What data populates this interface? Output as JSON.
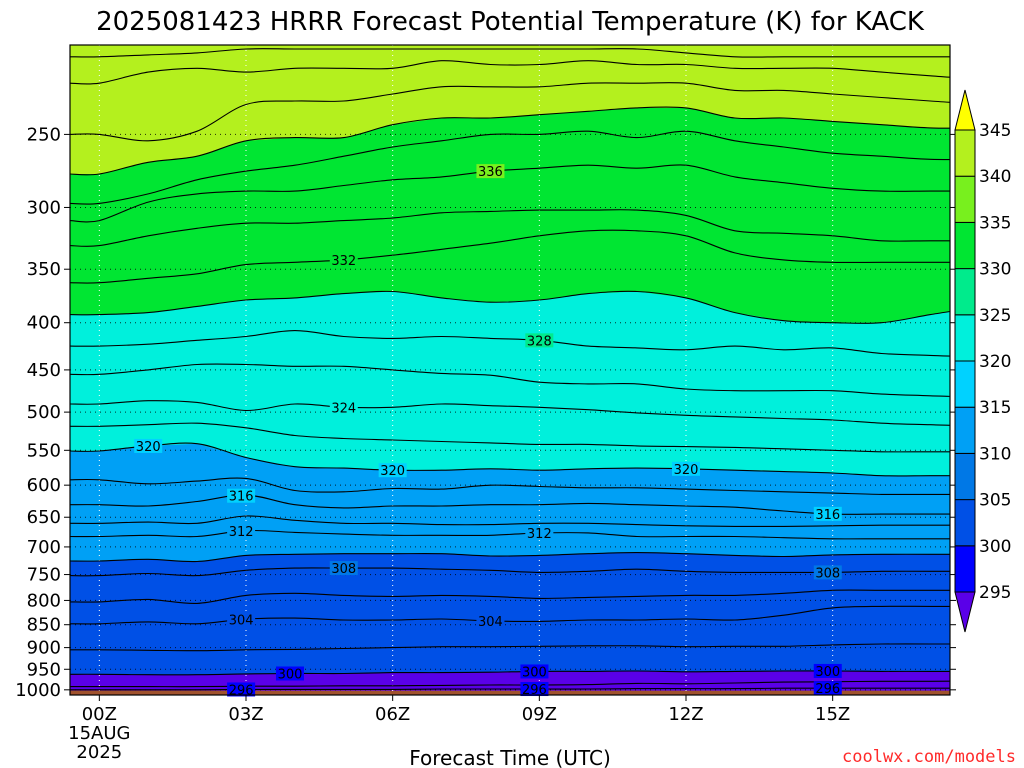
{
  "chart_data": {
    "type": "heatmap",
    "title": "2025081423 HRRR Forecast Potential Temperature (K) for KACK",
    "xlabel": "Forecast Time (UTC)",
    "x_ticks": [
      {
        "hour": 0,
        "lines": [
          "00Z",
          "15AUG",
          "2025"
        ]
      },
      {
        "hour": 3,
        "lines": [
          "03Z"
        ]
      },
      {
        "hour": 6,
        "lines": [
          "06Z"
        ]
      },
      {
        "hour": 9,
        "lines": [
          "09Z"
        ]
      },
      {
        "hour": 12,
        "lines": [
          "12Z"
        ]
      },
      {
        "hour": 15,
        "lines": [
          "15Z"
        ]
      }
    ],
    "xlim": [
      -0.6,
      17.4
    ],
    "y_ticks": [
      250,
      300,
      350,
      400,
      450,
      500,
      550,
      600,
      650,
      700,
      750,
      800,
      850,
      900,
      950,
      1000
    ],
    "y_scale": "log",
    "ylim": [
      1013,
      200
    ],
    "colorbar": {
      "levels": [
        295,
        300,
        305,
        310,
        315,
        320,
        325,
        330,
        335,
        340,
        345
      ],
      "colors": [
        "#5a00e8",
        "#0000ff",
        "#0050e6",
        "#0078e6",
        "#00a0f5",
        "#00d2ff",
        "#00f0dc",
        "#00eb8c",
        "#00e632",
        "#78f01e",
        "#b4f01e",
        "#ffff00"
      ],
      "extend": "both"
    },
    "contour_interval": 2,
    "contours": [
      {
        "theta": 296,
        "pressure": [
          1000,
          1000,
          1000,
          999,
          999,
          999,
          999,
          998,
          998,
          998,
          998,
          997,
          997,
          997,
          996,
          996,
          996,
          996,
          996
        ]
      },
      {
        "theta": 298,
        "pressure": [
          992,
          992,
          992,
          991,
          991,
          990,
          990,
          989,
          988,
          988,
          987,
          984,
          985,
          983,
          981,
          980,
          979,
          979,
          978
        ]
      },
      {
        "theta": 300,
        "pressure": [
          962,
          963,
          963,
          961,
          960,
          960,
          958,
          958,
          957,
          955,
          955,
          954,
          956,
          955,
          954,
          954,
          955,
          955,
          956
        ]
      },
      {
        "theta": 302,
        "pressure": [
          905,
          906,
          907,
          905,
          904,
          902,
          900,
          898,
          898,
          897,
          896,
          896,
          898,
          897,
          897,
          894,
          892,
          892,
          892
        ]
      },
      {
        "theta": 304,
        "pressure": [
          848,
          844,
          848,
          838,
          836,
          840,
          840,
          838,
          842,
          843,
          840,
          840,
          838,
          840,
          830,
          815,
          812,
          812,
          812
        ]
      },
      {
        "theta": 306,
        "pressure": [
          803,
          798,
          806,
          790,
          786,
          790,
          792,
          790,
          792,
          796,
          794,
          792,
          790,
          790,
          786,
          780,
          780,
          780,
          780
        ]
      },
      {
        "theta": 308,
        "pressure": [
          752,
          748,
          752,
          742,
          738,
          738,
          738,
          740,
          742,
          746,
          744,
          740,
          744,
          746,
          746,
          746,
          744,
          744,
          744
        ]
      },
      {
        "theta": 310,
        "pressure": [
          725,
          722,
          726,
          715,
          713,
          712,
          712,
          712,
          716,
          715,
          712,
          710,
          712,
          715,
          717,
          714,
          713,
          713,
          713
        ]
      },
      {
        "theta": 312,
        "pressure": [
          682,
          680,
          682,
          672,
          675,
          678,
          680,
          680,
          680,
          676,
          676,
          682,
          682,
          682,
          684,
          686,
          686,
          686,
          686
        ]
      },
      {
        "theta": 314,
        "pressure": [
          660,
          658,
          660,
          648,
          655,
          660,
          660,
          662,
          662,
          660,
          660,
          662,
          664,
          665,
          665,
          664,
          663,
          663,
          663
        ]
      },
      {
        "theta": 316,
        "pressure": [
          630,
          632,
          625,
          615,
          630,
          635,
          632,
          632,
          630,
          630,
          628,
          630,
          632,
          634,
          640,
          645,
          645,
          645,
          645
        ]
      },
      {
        "theta": 318,
        "pressure": [
          592,
          598,
          594,
          590,
          608,
          610,
          605,
          606,
          600,
          602,
          604,
          604,
          606,
          608,
          610,
          612,
          614,
          614,
          614
        ]
      },
      {
        "theta": 320,
        "pressure": [
          551,
          544,
          541,
          560,
          573,
          575,
          578,
          578,
          576,
          578,
          576,
          575,
          576,
          578,
          580,
          582,
          586,
          586,
          586
        ]
      },
      {
        "theta": 322,
        "pressure": [
          518,
          516,
          514,
          520,
          530,
          534,
          536,
          538,
          540,
          542,
          542,
          544,
          545,
          546,
          548,
          550,
          552,
          552,
          552
        ]
      },
      {
        "theta": 324,
        "pressure": [
          490,
          486,
          488,
          498,
          490,
          494,
          494,
          490,
          492,
          494,
          497,
          501,
          504,
          506,
          508,
          510,
          514,
          516,
          518
        ]
      },
      {
        "theta": 326,
        "pressure": [
          455,
          450,
          444,
          444,
          446,
          446,
          450,
          454,
          456,
          464,
          466,
          466,
          472,
          474,
          474,
          474,
          478,
          480,
          482
        ]
      },
      {
        "theta": 328,
        "pressure": [
          424,
          422,
          418,
          414,
          408,
          414,
          416,
          414,
          416,
          418,
          424,
          426,
          428,
          424,
          428,
          426,
          432,
          434,
          436
        ]
      },
      {
        "theta": 330,
        "pressure": [
          392,
          390,
          384,
          378,
          376,
          372,
          370,
          376,
          380,
          378,
          372,
          370,
          376,
          390,
          398,
          400,
          400,
          392,
          384
        ]
      },
      {
        "theta": 332,
        "pressure": [
          362,
          358,
          354,
          346,
          344,
          342,
          338,
          333,
          328,
          322,
          318,
          318,
          322,
          336,
          342,
          344,
          344,
          344,
          344
        ]
      },
      {
        "theta": 334,
        "pressure": [
          330,
          322,
          316,
          312,
          312,
          310,
          308,
          304,
          303,
          302,
          302,
          302,
          306,
          318,
          320,
          322,
          326,
          326,
          326
        ]
      },
      {
        "theta": 336,
        "pressure": [
          310,
          296,
          290,
          288,
          288,
          284,
          280,
          278,
          274,
          272,
          270,
          272,
          270,
          278,
          282,
          286,
          288,
          288,
          288
        ]
      },
      {
        "theta": 338,
        "pressure": [
          297,
          290,
          280,
          274,
          270,
          264,
          258,
          254,
          250,
          250,
          248,
          252,
          248,
          254,
          258,
          262,
          264,
          266,
          266
        ]
      },
      {
        "theta": 340,
        "pressure": [
          276,
          268,
          264,
          254,
          252,
          252,
          244,
          240,
          240,
          238,
          236,
          234,
          234,
          240,
          240,
          242,
          244,
          246,
          246
        ]
      },
      {
        "theta": 342,
        "pressure": [
          250,
          254,
          248,
          232,
          230,
          230,
          226,
          222,
          222,
          222,
          220,
          220,
          220,
          224,
          224,
          226,
          228,
          230,
          232
        ]
      },
      {
        "theta": 344,
        "pressure": [
          220,
          214,
          212,
          214,
          212,
          212,
          212,
          208,
          210,
          210,
          208,
          210,
          210,
          212,
          212,
          212,
          214,
          216,
          218
        ]
      },
      {
        "theta": 346,
        "pressure": [
          206,
          205,
          204,
          202,
          202,
          202,
          202,
          202,
          202,
          202,
          202,
          202,
          204,
          206,
          206,
          206,
          206,
          206,
          206
        ]
      }
    ],
    "contour_labels": [
      {
        "theta": 296,
        "hour": 2.9
      },
      {
        "theta": 296,
        "hour": 8.9
      },
      {
        "theta": 296,
        "hour": 14.9
      },
      {
        "theta": 300,
        "hour": 3.9
      },
      {
        "theta": 300,
        "hour": 8.9
      },
      {
        "theta": 300,
        "hour": 14.9
      },
      {
        "theta": 304,
        "hour": 2.9
      },
      {
        "theta": 304,
        "hour": 8.0
      },
      {
        "theta": 308,
        "hour": 5.0
      },
      {
        "theta": 308,
        "hour": 14.9
      },
      {
        "theta": 312,
        "hour": 2.9
      },
      {
        "theta": 312,
        "hour": 9.0
      },
      {
        "theta": 316,
        "hour": 2.9
      },
      {
        "theta": 316,
        "hour": 14.9
      },
      {
        "theta": 320,
        "hour": 1.0
      },
      {
        "theta": 320,
        "hour": 6.0
      },
      {
        "theta": 320,
        "hour": 12.0
      },
      {
        "theta": 324,
        "hour": 5.0
      },
      {
        "theta": 328,
        "hour": 9.0
      },
      {
        "theta": 332,
        "hour": 5.0
      },
      {
        "theta": 336,
        "hour": 8.0
      }
    ],
    "grid": "dotted",
    "credit": "coolwx.com/models"
  }
}
